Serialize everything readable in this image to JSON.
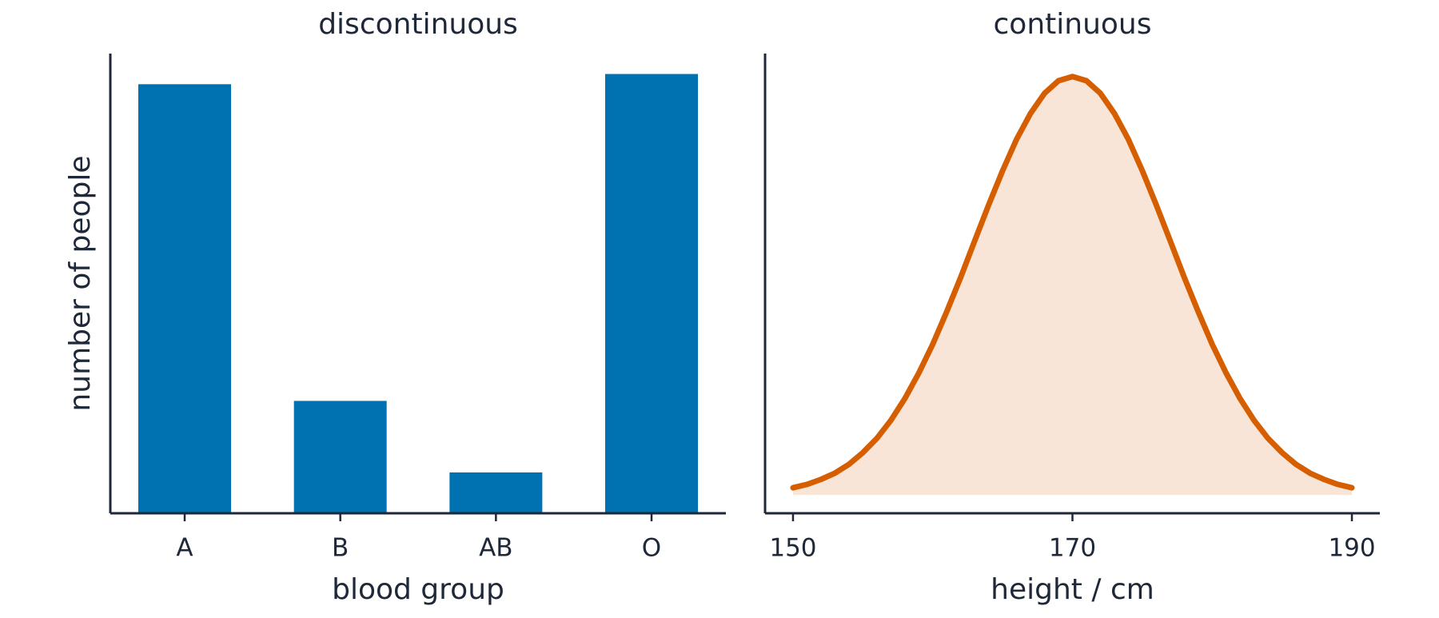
{
  "chart_data": [
    {
      "type": "bar",
      "title": "discontinuous",
      "x_label": "blood group",
      "y_label": "number of people",
      "categories": [
        "A",
        "B",
        "AB",
        "O"
      ],
      "values": [
        42,
        11,
        4,
        43
      ],
      "color": "#0072b2",
      "ylim": [
        0,
        45
      ]
    },
    {
      "type": "area",
      "title": "continuous",
      "x_label": "height / cm",
      "x": [
        150,
        151,
        152,
        153,
        154,
        155,
        156,
        157,
        158,
        159,
        160,
        161,
        162,
        163,
        164,
        165,
        166,
        167,
        168,
        169,
        170,
        171,
        172,
        173,
        174,
        175,
        176,
        177,
        178,
        179,
        180,
        181,
        182,
        183,
        184,
        185,
        186,
        187,
        188,
        189,
        190
      ],
      "values": [
        1.7,
        2.5,
        3.7,
        5.2,
        7.3,
        10.1,
        13.5,
        17.8,
        23.0,
        29.1,
        36.0,
        43.8,
        52.0,
        60.7,
        69.3,
        77.5,
        85.0,
        91.2,
        96.0,
        99.0,
        100,
        99.0,
        96.0,
        91.2,
        85.0,
        77.5,
        69.3,
        60.7,
        52.0,
        43.8,
        36.0,
        29.1,
        23.0,
        17.8,
        13.5,
        10.1,
        7.3,
        5.2,
        3.7,
        2.5,
        1.7
      ],
      "color": "#d55e00",
      "fill_color": "#f8e5d7",
      "xlim": [
        148,
        192
      ],
      "xticks": [
        150,
        170,
        190
      ],
      "ylim": [
        -4.4,
        105.5
      ]
    }
  ]
}
